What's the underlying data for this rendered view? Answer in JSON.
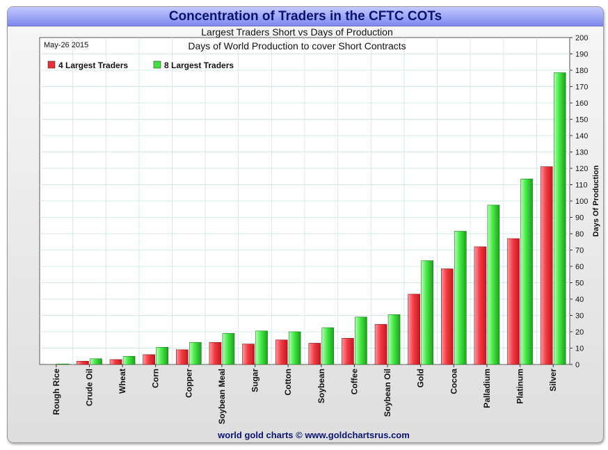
{
  "header": {
    "title": "Concentration of Traders in the CFTC COTs",
    "subtitle": "Largest Traders Short vs Days of Production",
    "chart_title": "Days of World Production to cover Short Contracts",
    "date": "May-26 2015",
    "footer": "world gold charts © www.goldchartsrus.com"
  },
  "colors": {
    "series_red": "#e8303a",
    "series_green": "#40e040",
    "title_text": "#0a1470"
  },
  "chart_data": {
    "type": "bar",
    "categories": [
      "Rough Rice",
      "Crude Oil",
      "Wheat",
      "Corn",
      "Copper",
      "Soybean Meal",
      "Sugar",
      "Cotton",
      "Soybean",
      "Coffee",
      "Soybean Oil",
      "Gold",
      "Cocoa",
      "Palladium",
      "Platinum",
      "Silver"
    ],
    "series": [
      {
        "name": "4 Largest Traders",
        "color": "#e8303a",
        "values": [
          0,
          2,
          3,
          6,
          9,
          13.5,
          12.5,
          15,
          13,
          16,
          24.5,
          43,
          58.5,
          72,
          77,
          121
        ]
      },
      {
        "name": "8 Largest Traders",
        "color": "#40e040",
        "values": [
          0.3,
          3.5,
          5,
          10.5,
          13.5,
          19,
          20.5,
          20,
          22.5,
          29,
          30.5,
          63.5,
          81.5,
          97.5,
          113.5,
          178.5
        ]
      }
    ],
    "ylabel": "Days Of Production",
    "ylim": [
      0,
      200
    ],
    "yticks": [
      "0",
      "10",
      "20",
      "30",
      "40",
      "50",
      "60",
      "70",
      "80",
      "90",
      "100",
      "110",
      "120",
      "130",
      "140",
      "150",
      "160",
      "170",
      "180",
      "190",
      "200"
    ],
    "y_axis_side": "right",
    "legend": "top-left",
    "grid": true
  }
}
